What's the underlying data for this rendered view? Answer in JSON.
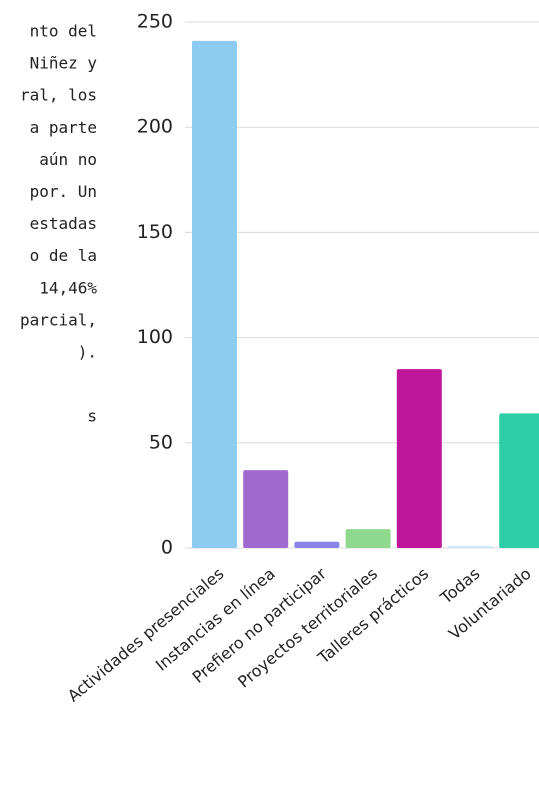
{
  "text_fragments": [
    "nto del",
    "Niñez y",
    "ral, los",
    "a parte",
    "aún no",
    "por. Un",
    "estadas",
    "o de la",
    "14,46%",
    "parcial,",
    ")."
  ],
  "trailing_fragment": "s",
  "chart_data": {
    "type": "bar",
    "categories": [
      "Actividades presenciales",
      "Instancias en línea",
      "Prefiero no participar",
      "Proyectos territoriales",
      "Talleres prácticos",
      "Todas",
      "Voluntariado"
    ],
    "values": [
      241,
      37,
      3,
      9,
      85,
      1,
      64
    ],
    "colors": [
      "#8ecbf0",
      "#a06bd0",
      "#8a84e6",
      "#8ed98e",
      "#c0169c",
      "#cfeaf7",
      "#2ecfa8"
    ],
    "ylim": [
      0,
      250
    ],
    "yticks": [
      0,
      50,
      100,
      150,
      200,
      250
    ],
    "grid": true
  }
}
